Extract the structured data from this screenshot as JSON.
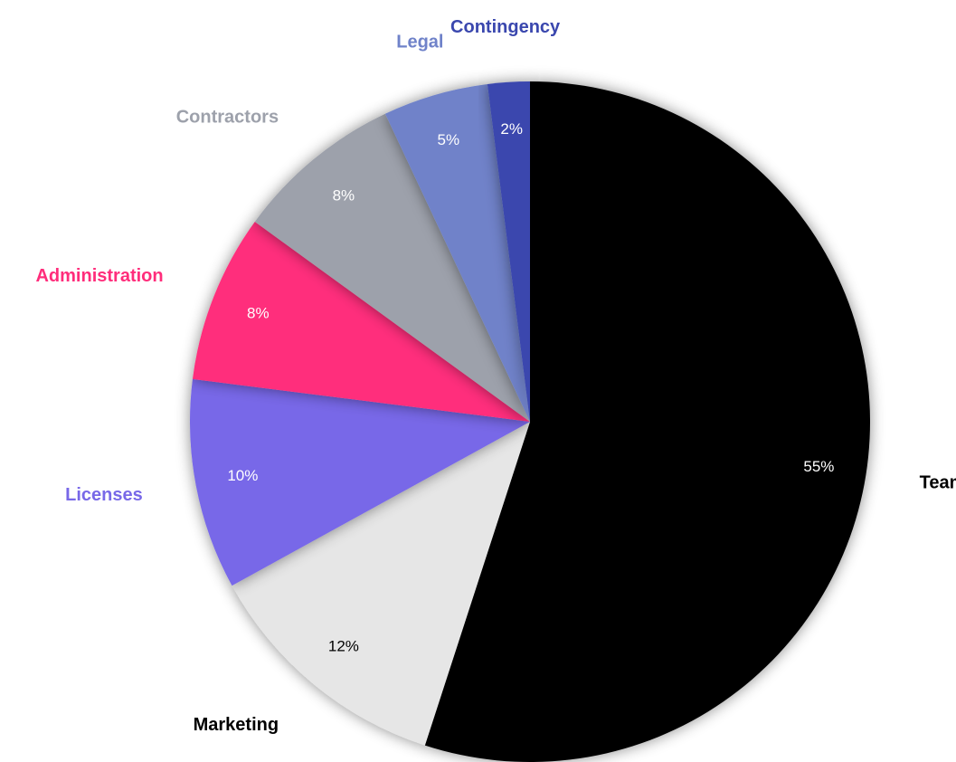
{
  "chart_data": {
    "type": "pie",
    "categories": [
      "Team",
      "Marketing",
      "Licenses",
      "Administration",
      "Contractors",
      "Legal",
      "Contingency"
    ],
    "values": [
      55,
      12,
      10,
      8,
      8,
      5,
      2
    ],
    "value_labels": [
      "55%",
      "12%",
      "10%",
      "8%",
      "8%",
      "5%",
      "2%"
    ],
    "colors": [
      "#000000",
      "#e6e6e6",
      "#7868e8",
      "#ff2d7b",
      "#9da1ab",
      "#6f82c9",
      "#3a47ae"
    ],
    "label_colors": [
      "#000000",
      "#000000",
      "#7868e8",
      "#ff2d7b",
      "#9da1ab",
      "#6f82c9",
      "#3a47ae"
    ],
    "value_label_colors": [
      "#ffffff",
      "#000000",
      "#ffffff",
      "#ffffff",
      "#ffffff",
      "#ffffff",
      "#ffffff"
    ]
  }
}
